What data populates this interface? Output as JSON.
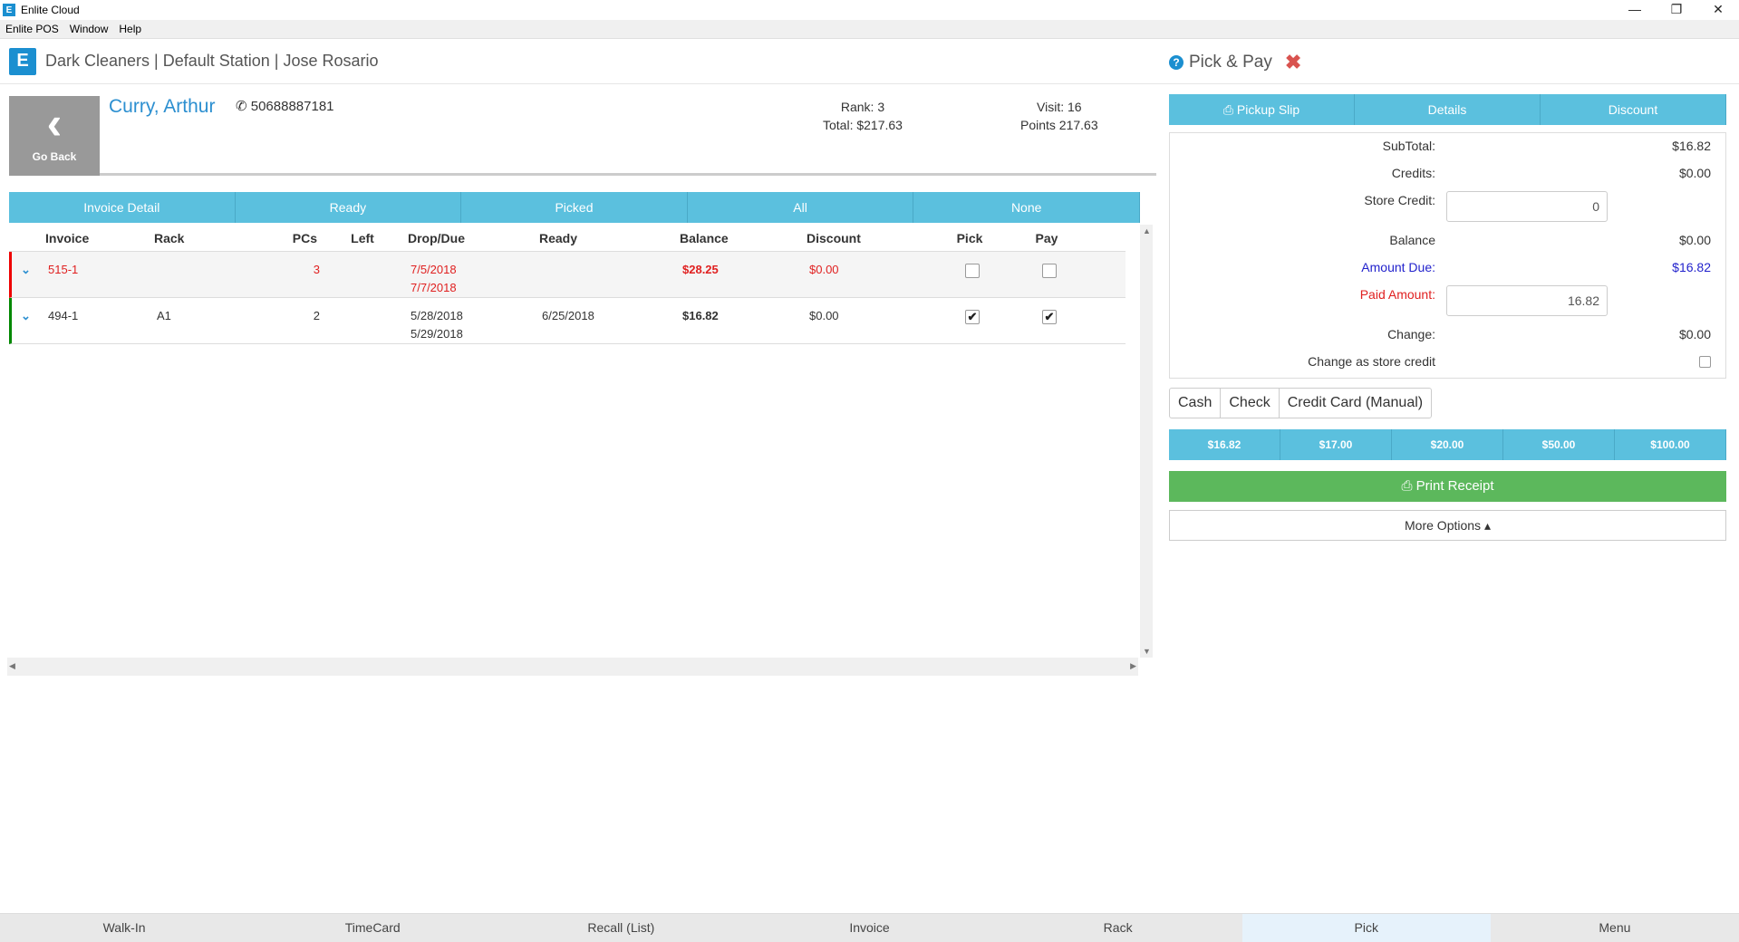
{
  "window": {
    "title": "Enlite Cloud",
    "app_icon": "E",
    "minimize": "—",
    "maximize": "❐",
    "close": "✕"
  },
  "menu": [
    "Enlite POS",
    "Window",
    "Help"
  ],
  "header": {
    "logo": "E",
    "store": "Dark Cleaners | Default Station | Jose Rosario",
    "page": "Pick & Pay",
    "help_glyph": "?",
    "close_glyph": "✖"
  },
  "customer": {
    "back_label": "Go Back",
    "name": "Curry, Arthur",
    "phone": "50688887181",
    "rank": "Rank: 3",
    "total": "Total: $217.63",
    "visit": "Visit: 16",
    "points": "Points 217.63"
  },
  "filters": [
    "Invoice Detail",
    "Ready",
    "Picked",
    "All",
    "None"
  ],
  "table": {
    "columns": [
      "Invoice",
      "Rack",
      "PCs",
      "Left",
      "Drop/Due",
      "Ready",
      "Balance",
      "Discount",
      "Pick",
      "Pay"
    ],
    "rows": [
      {
        "invoice": "515-1",
        "rack": "",
        "pcs": "3",
        "left": "",
        "drop": "7/5/2018",
        "due": "7/7/2018",
        "ready": "",
        "balance": "$28.25",
        "discount": "$0.00",
        "pick": false,
        "pay": false,
        "status_color": "#ee0000"
      },
      {
        "invoice": "494-1",
        "rack": "A1",
        "pcs": "2",
        "left": "",
        "drop": "5/28/2018",
        "due": "5/29/2018",
        "ready": "6/25/2018",
        "balance": "$16.82",
        "discount": "$0.00",
        "pick": true,
        "pay": true,
        "status_color": "#008800"
      }
    ]
  },
  "tabs": {
    "pickup_slip": "Pickup Slip",
    "details": "Details",
    "discount": "Discount"
  },
  "summary": {
    "subtotal_label": "SubTotal:",
    "subtotal": "$16.82",
    "credits_label": "Credits:",
    "credits": "$0.00",
    "store_credit_label": "Store Credit:",
    "store_credit": "0",
    "balance_label": "Balance",
    "balance": "$0.00",
    "amount_due_label": "Amount Due:",
    "amount_due": "$16.82",
    "paid_label": "Paid Amount:",
    "paid": "16.82",
    "change_label": "Change:",
    "change": "$0.00",
    "change_credit_label": "Change as store credit"
  },
  "payment_methods": [
    "Cash",
    "Check",
    "Credit Card (Manual)"
  ],
  "quick_amounts": [
    "$16.82",
    "$17.00",
    "$20.00",
    "$50.00",
    "$100.00"
  ],
  "print_receipt": "Print Receipt",
  "more_options": "More Options ▴",
  "bottom_nav": [
    "Walk-In",
    "TimeCard",
    "Recall (List)",
    "Invoice",
    "Rack",
    "Pick",
    "Menu"
  ],
  "active_nav": "Pick",
  "colors": {
    "accent": "#5bc0de",
    "print": "#5cb85c",
    "brand": "#1b8fd0"
  }
}
